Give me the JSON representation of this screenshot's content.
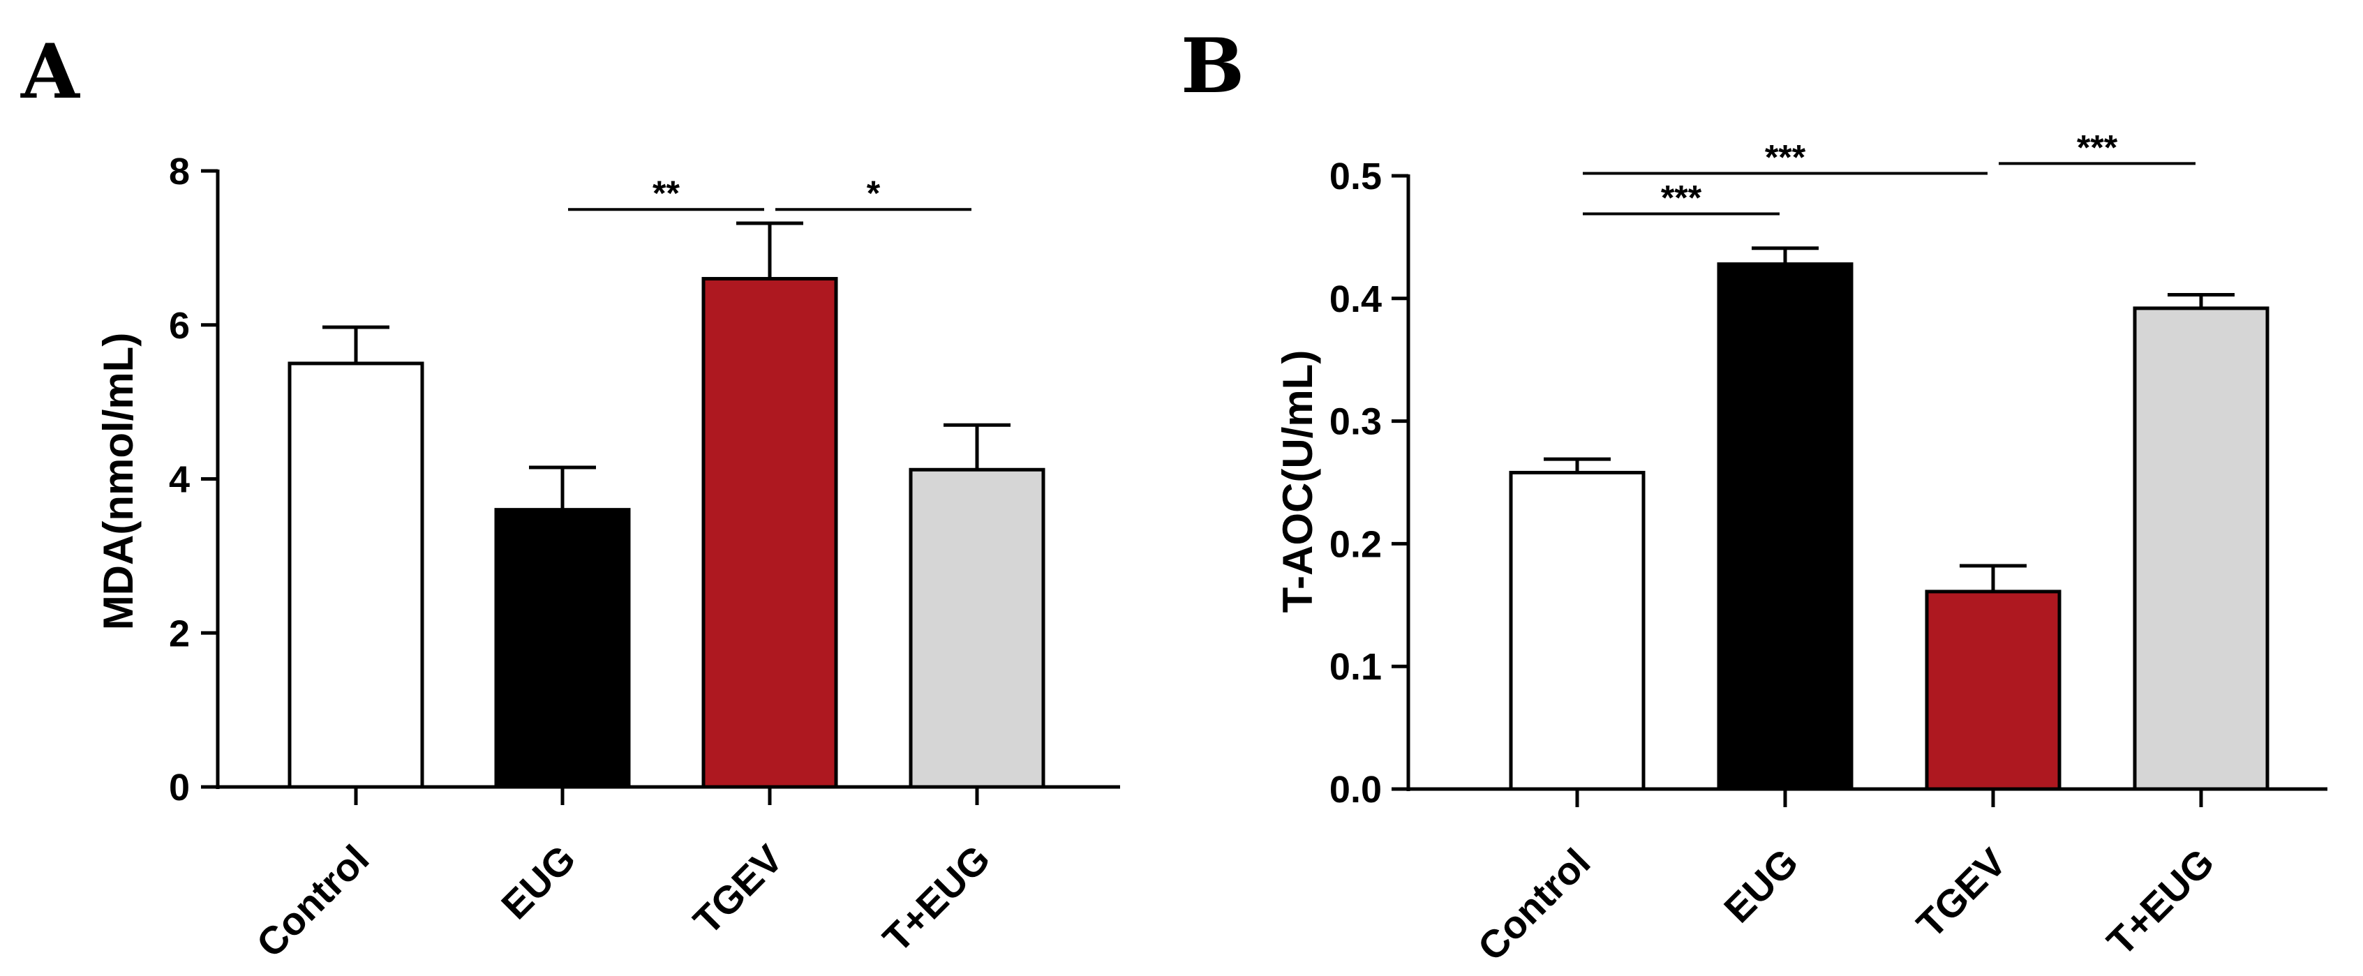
{
  "panels": {
    "a": {
      "letter": "A"
    },
    "b": {
      "letter": "B"
    }
  },
  "chart_data": [
    {
      "type": "bar",
      "panel": "A",
      "title": "",
      "xlabel": "",
      "ylabel": "MDA(nmol/mL)",
      "categories": [
        "Control",
        "EUG",
        "TGEV",
        "T+EUG"
      ],
      "values": [
        5.5,
        3.6,
        6.6,
        4.12
      ],
      "error": [
        0.47,
        0.55,
        0.72,
        0.58
      ],
      "colors": [
        "#ffffff",
        "#000000",
        "#ae1820",
        "#d6d6d6"
      ],
      "ylim": [
        0,
        8
      ],
      "yticks": [
        "0",
        "2",
        "4",
        "6",
        "8"
      ],
      "ytick_values": [
        0,
        2,
        4,
        6,
        8
      ],
      "grid": false,
      "significance": [
        {
          "from": 1,
          "to": 2,
          "label": "**",
          "y": 7.5
        },
        {
          "from": 2,
          "to": 3,
          "label": "*",
          "y": 7.5
        }
      ]
    },
    {
      "type": "bar",
      "panel": "B",
      "title": "",
      "xlabel": "",
      "ylabel": "T-AOC(U/mL)",
      "categories": [
        "Control",
        "EUG",
        "TGEV",
        "T+EUG"
      ],
      "values": [
        0.258,
        0.428,
        0.161,
        0.392
      ],
      "error": [
        0.011,
        0.013,
        0.021,
        0.011
      ],
      "colors": [
        "#ffffff",
        "#000000",
        "#ae1820",
        "#d6d6d6"
      ],
      "ylim": [
        0,
        0.5
      ],
      "yticks": [
        "0.0",
        "0.1",
        "0.2",
        "0.3",
        "0.4",
        "0.5"
      ],
      "ytick_values": [
        0,
        0.1,
        0.2,
        0.3,
        0.4,
        0.5
      ],
      "grid": false,
      "significance": [
        {
          "from": 0,
          "to": 1,
          "label": "***",
          "y": 0.469
        },
        {
          "from": 0,
          "to": 2,
          "label": "***",
          "y": 0.502
        },
        {
          "from": 2,
          "to": 3,
          "label": "***",
          "y": 0.51
        }
      ]
    }
  ]
}
